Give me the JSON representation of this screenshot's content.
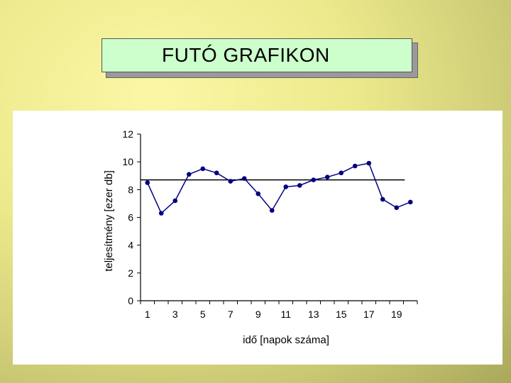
{
  "slide": {
    "title": "FUTÓ GRAFIKON"
  },
  "chart_data": {
    "type": "line",
    "x": [
      1,
      2,
      3,
      4,
      5,
      6,
      7,
      8,
      9,
      10,
      11,
      12,
      13,
      14,
      15,
      16,
      17,
      18,
      19,
      20
    ],
    "series": [
      {
        "values": [
          8.5,
          6.3,
          7.2,
          9.1,
          9.5,
          9.2,
          8.6,
          8.8,
          7.7,
          6.5,
          8.2,
          8.3,
          8.7,
          8.9,
          9.2,
          9.7,
          9.9,
          7.3,
          6.7,
          7.1
        ]
      }
    ],
    "reference_line": 8.7,
    "xlabel": "idő [napok száma]",
    "ylabel": "teljesítmény [ezer db]",
    "x_tick_labels": [
      "1",
      "3",
      "5",
      "7",
      "9",
      "11",
      "13",
      "15",
      "17",
      "19"
    ],
    "y_tick_labels": [
      "0",
      "2",
      "4",
      "6",
      "8",
      "10",
      "12"
    ],
    "xlim": [
      0.5,
      20.5
    ],
    "ylim": [
      0,
      12
    ],
    "grid": false,
    "line_color": "#000080",
    "reference_color": "#000000"
  }
}
